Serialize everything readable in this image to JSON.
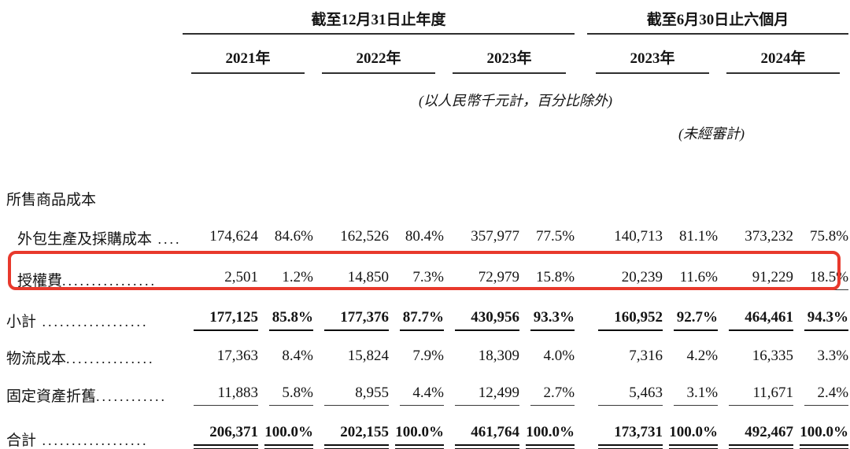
{
  "table": {
    "col_groups": [
      {
        "label": "截至12月31日止年度",
        "years": [
          "2021年",
          "2022年",
          "2023年"
        ]
      },
      {
        "label": "截至6月30日止六個月",
        "years": [
          "2023年",
          "2024年"
        ]
      }
    ],
    "notes": {
      "unit_note": "(以人民幣千元計，百分比除外)",
      "unaudited_note": "(未經審計)"
    },
    "section_header": "所售商品成本",
    "rows": [
      {
        "name": "外包生產及採購成本",
        "leader": " ....",
        "indent": true,
        "style": "normal",
        "highlighted": false,
        "values": [
          "174,624",
          "84.6%",
          "162,526",
          "80.4%",
          "357,977",
          "77.5%",
          "140,713",
          "81.1%",
          "373,232",
          "75.8%"
        ]
      },
      {
        "name": "授權費",
        "leader": "................",
        "indent": true,
        "style": "underline",
        "highlighted": true,
        "values": [
          "2,501",
          "1.2%",
          "14,850",
          "7.3%",
          "72,979",
          "15.8%",
          "20,239",
          "11.6%",
          "91,229",
          "18.5%"
        ]
      },
      {
        "name": "小計",
        "leader": " ..................",
        "indent": false,
        "style": "bold-underline",
        "highlighted": false,
        "values": [
          "177,125",
          "85.8%",
          "177,376",
          "87.7%",
          "430,956",
          "93.3%",
          "160,952",
          "92.7%",
          "464,461",
          "94.3%"
        ]
      },
      {
        "name": "物流成本",
        "leader": "...............",
        "indent": false,
        "style": "normal",
        "highlighted": false,
        "values": [
          "17,363",
          "8.4%",
          "15,824",
          "7.9%",
          "18,309",
          "4.0%",
          "7,316",
          "4.2%",
          "16,335",
          "3.3%"
        ]
      },
      {
        "name": "固定資產折舊",
        "leader": "............",
        "indent": false,
        "style": "underline",
        "highlighted": false,
        "values": [
          "11,883",
          "5.8%",
          "8,955",
          "4.4%",
          "12,499",
          "2.7%",
          "5,463",
          "3.1%",
          "11,671",
          "2.4%"
        ]
      },
      {
        "name": "合計",
        "leader": " ..................",
        "indent": false,
        "style": "bold-double-underline",
        "highlighted": false,
        "values": [
          "206,371",
          "100.0%",
          "202,155",
          "100.0%",
          "461,764",
          "100.0%",
          "173,731",
          "100.0%",
          "492,467",
          "100.0%"
        ]
      }
    ],
    "highlight_color": "#e8392c"
  }
}
